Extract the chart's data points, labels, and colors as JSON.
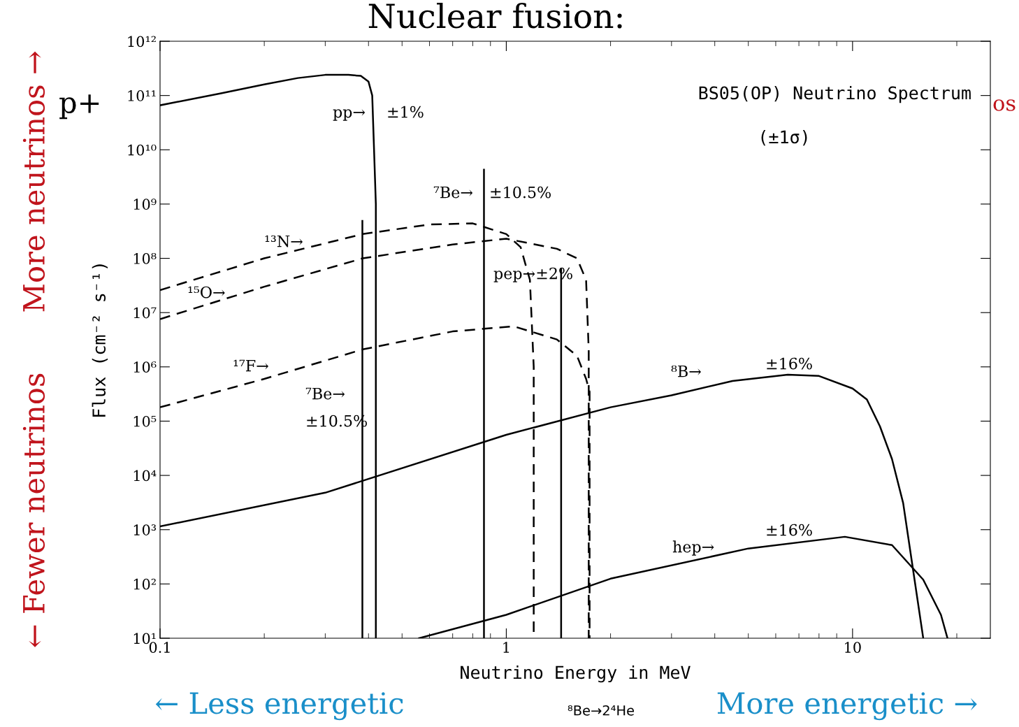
{
  "chart_data": {
    "type": "line",
    "xlabel": "Neutrino Energy in MeV",
    "ylabel": "Flux (cm⁻² s⁻¹)",
    "log": "xy",
    "xlim": [
      0.1,
      25
    ],
    "xticks": [
      0.1,
      1,
      10
    ],
    "ylim": [
      10,
      1000000000000.0
    ],
    "yticks": [
      {
        "value": 10,
        "label": "10¹"
      },
      {
        "value": 100,
        "label": "10²"
      },
      {
        "value": 1000,
        "label": "10³"
      },
      {
        "value": 10000,
        "label": "10⁴"
      },
      {
        "value": 100000,
        "label": "10⁵"
      },
      {
        "value": 1000000,
        "label": "10⁶"
      },
      {
        "value": 10000000,
        "label": "10⁷"
      },
      {
        "value": 100000000,
        "label": "10⁸"
      },
      {
        "value": 1000000000,
        "label": "10⁹"
      },
      {
        "value": 10000000000,
        "label": "10¹⁰"
      },
      {
        "value": 100000000000,
        "label": "10¹¹"
      },
      {
        "value": 1000000000000,
        "label": "10¹²"
      }
    ],
    "series": [
      {
        "color": "#000000",
        "line_style": "solid",
        "x": [
          0.1,
          0.15,
          0.2,
          0.25,
          0.3,
          0.35,
          0.38,
          0.4,
          0.41,
          0.415,
          0.42,
          0.42
        ],
        "values": [
          66000000000.0,
          110000000000.0,
          160000000000.0,
          210000000000.0,
          240000000000.0,
          240000000000.0,
          230000000000.0,
          180000000000.0,
          100000000000.0,
          10000000000.0,
          1000000000.0,
          10
        ]
      },
      {
        "color": "#000000",
        "line_style": "dashed",
        "x": [
          0.1,
          0.2,
          0.385,
          0.6,
          0.8,
          1.0,
          1.1,
          1.17,
          1.2,
          1.2
        ],
        "values": [
          26000000.0,
          100000000.0,
          280000000.0,
          420000000.0,
          440000000.0,
          280000000.0,
          160000000.0,
          40000000.0,
          1000000.0,
          10
        ]
      },
      {
        "color": "#000000",
        "line_style": "dashed",
        "x": [
          0.1,
          0.2,
          0.385,
          0.7,
          1.0,
          1.4,
          1.6,
          1.7,
          1.73,
          1.73
        ],
        "values": [
          7600000.0,
          30000000.0,
          100000000.0,
          180000000.0,
          230000000.0,
          150000000.0,
          100000000.0,
          40000000.0,
          2000000.0,
          10
        ]
      },
      {
        "color": "#000000",
        "line_style": "dashed",
        "x": [
          0.1,
          0.2,
          0.385,
          0.7,
          1.05,
          1.4,
          1.6,
          1.7,
          1.74,
          1.74
        ],
        "values": [
          180000.0,
          600000.0,
          2100000.0,
          4500000.0,
          5600000.0,
          3200000.0,
          1600000.0,
          600000.0,
          350000.0,
          10
        ]
      },
      {
        "color": "#000000",
        "line_style": "solid",
        "x": [
          0.1,
          0.3,
          1,
          2,
          3,
          4.5,
          6.5,
          8,
          10,
          11,
          12,
          13,
          14,
          15,
          16
        ],
        "values": [
          1150,
          4800,
          56000,
          180000,
          300000,
          550000,
          720000,
          680000,
          400000,
          250000,
          80000,
          20000,
          3100,
          160,
          10
        ]
      },
      {
        "color": "#000000",
        "line_style": "solid",
        "x": [
          0.56,
          1,
          2,
          5,
          9.5,
          13,
          16,
          18,
          18.8
        ],
        "values": [
          10,
          27,
          125,
          450,
          740,
          520,
          120,
          27,
          10
        ]
      },
      {
        "color": "#000000",
        "line_style": "solid",
        "x": [
          0.384,
          0.384
        ],
        "values": [
          10,
          490000000.0
        ]
      },
      {
        "color": "#000000",
        "line_style": "solid",
        "x": [
          0.862,
          0.862
        ],
        "values": [
          10,
          4300000000.0
        ]
      },
      {
        "color": "#000000",
        "line_style": "solid",
        "x": [
          1.44,
          1.44
        ],
        "values": [
          10,
          63000000.0
        ]
      }
    ],
    "annotations": [
      "pp→",
      "±1%",
      "⁷Be→",
      "±10.5%",
      "¹³N→",
      "¹⁵O→",
      "¹⁷F→",
      "⁷Be→",
      "±10.5%",
      "pep→±2%",
      "⁸B→",
      "±16%",
      "hep→",
      "±16%",
      "BS05(OP) Neutrino Spectrum",
      "(±1σ)",
      "Nuclear fusion:",
      "p+",
      "os",
      "More neutrinos →",
      "← Fewer neutrinos",
      "← Less energetic",
      "More energetic →",
      "⁸Be→2⁴He"
    ]
  }
}
